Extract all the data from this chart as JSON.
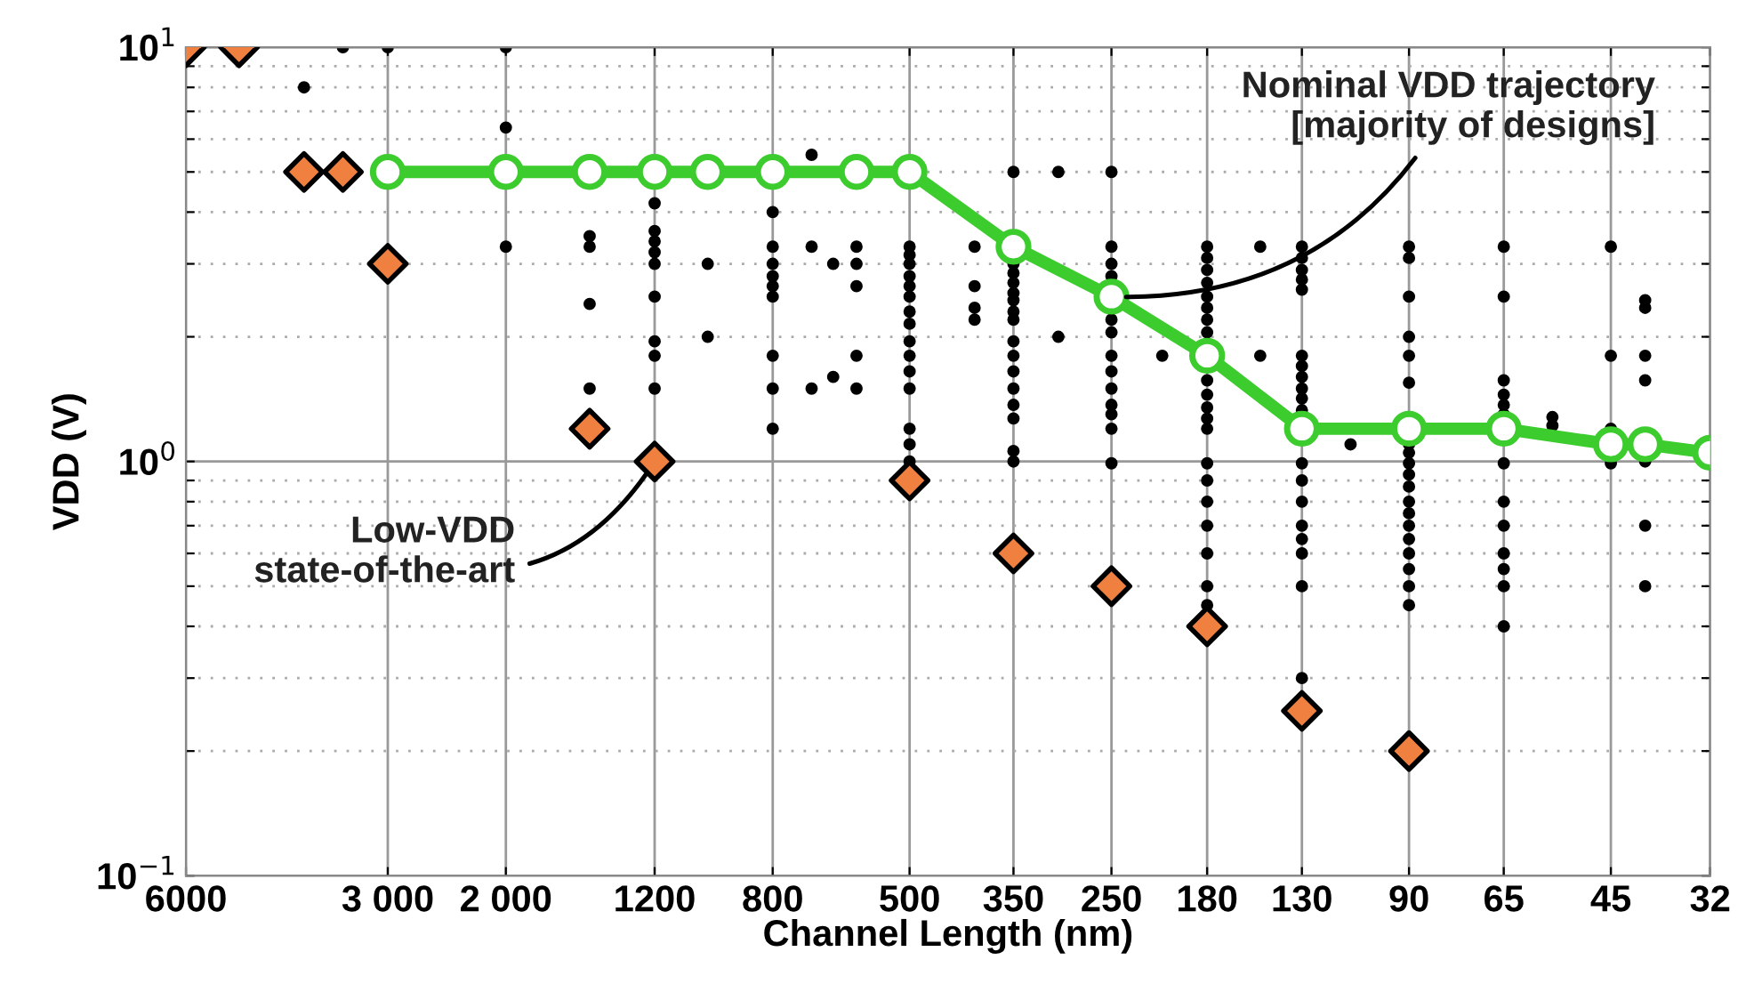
{
  "chart_data": {
    "type": "scatter",
    "xlabel": "Channel Length (nm)",
    "ylabel": "VDD (V)",
    "log": "xy",
    "grid": true,
    "legend": false,
    "xlim": [
      6000,
      32
    ],
    "ylim": [
      0.1,
      10
    ],
    "xticks": [
      6000,
      {
        "value": 3000,
        "label": "3 000"
      },
      {
        "value": 2000,
        "label": "2 000"
      },
      1200,
      800,
      500,
      350,
      250,
      180,
      130,
      90,
      65,
      45,
      32
    ],
    "yticks": [
      {
        "value": 0.1,
        "label": "10$^{−1}$"
      },
      {
        "value": 0.2,
        "label": null
      },
      {
        "value": 0.3,
        "label": null
      },
      {
        "value": 0.4,
        "label": null
      },
      {
        "value": 0.5,
        "label": null
      },
      {
        "value": 0.6,
        "label": null
      },
      {
        "value": 0.7,
        "label": null
      },
      {
        "value": 0.8,
        "label": null
      },
      {
        "value": 0.9,
        "label": null
      },
      {
        "value": 1,
        "label": "10$^{0}$"
      },
      {
        "value": 2,
        "label": null
      },
      {
        "value": 3,
        "label": null
      },
      {
        "value": 4,
        "label": null
      },
      {
        "value": 5,
        "label": null
      },
      {
        "value": 6,
        "label": null
      },
      {
        "value": 7,
        "label": null
      },
      {
        "value": 8,
        "label": null
      },
      {
        "value": 9,
        "label": null
      },
      {
        "value": 10,
        "label": "10$^{1}$"
      }
    ],
    "series": [
      {
        "type": "scatter",
        "color": "#000000",
        "marker": "circle",
        "x": [
          3500,
          3000,
          2000,
          2000,
          2000,
          4000,
          1500,
          1500,
          1500,
          1500,
          1200,
          1200,
          1200,
          1200,
          1200,
          1200,
          1200,
          1200,
          1200,
          1000,
          1000,
          800,
          800,
          800,
          800,
          800,
          800,
          800,
          800,
          800,
          700,
          700,
          700,
          650,
          650,
          600,
          600,
          600,
          600,
          600,
          500,
          500,
          500,
          500,
          500,
          500,
          500,
          500,
          500,
          500,
          500,
          500,
          500,
          500,
          500,
          400,
          400,
          400,
          400,
          350,
          350,
          350,
          350,
          350,
          350,
          350,
          350,
          350,
          350,
          350,
          350,
          350,
          350,
          350,
          350,
          300,
          300,
          250,
          250,
          250,
          250,
          250,
          250,
          250,
          250,
          250,
          250,
          250,
          250,
          250,
          210,
          180,
          180,
          180,
          180,
          180,
          180,
          180,
          180,
          180,
          180,
          180,
          180,
          180,
          180,
          180,
          180,
          180,
          180,
          180,
          180,
          150,
          150,
          130,
          130,
          130,
          130,
          130,
          130,
          130,
          130,
          130,
          130,
          130,
          130,
          130,
          130,
          130,
          130,
          130,
          130,
          130,
          110,
          90,
          90,
          90,
          90,
          90,
          90,
          90,
          90,
          90,
          90,
          90,
          90,
          90,
          90,
          90,
          90,
          90,
          90,
          90,
          65,
          65,
          65,
          65,
          65,
          65,
          65,
          65,
          65,
          65,
          65,
          65,
          65,
          55,
          55,
          45,
          45,
          45,
          45,
          40,
          40,
          40,
          40,
          40,
          40,
          40
        ],
        "values": [
          10,
          10,
          10,
          6.4,
          3.3,
          8.0,
          3.5,
          3.3,
          2.4,
          1.5,
          4.2,
          3.6,
          3.4,
          3.2,
          3.0,
          2.5,
          1.95,
          1.8,
          1.5,
          3.0,
          2.0,
          4.0,
          3.3,
          3.0,
          2.8,
          2.65,
          2.5,
          1.8,
          1.5,
          1.2,
          5.5,
          3.3,
          1.5,
          3.0,
          1.6,
          3.3,
          3.0,
          2.65,
          1.8,
          1.5,
          3.3,
          3.15,
          3.0,
          2.8,
          2.65,
          2.5,
          2.3,
          2.15,
          1.95,
          1.8,
          1.65,
          1.5,
          1.2,
          1.1,
          1.0,
          3.3,
          2.65,
          2.35,
          2.2,
          5.0,
          3.0,
          2.85,
          2.7,
          2.55,
          2.45,
          2.3,
          2.2,
          1.95,
          1.8,
          1.65,
          1.5,
          1.37,
          1.27,
          1.06,
          1.0,
          5.0,
          2.0,
          5.0,
          3.3,
          3.0,
          2.8,
          2.2,
          2.05,
          1.8,
          1.65,
          1.5,
          1.37,
          1.3,
          1.2,
          0.99,
          1.8,
          3.3,
          3.1,
          2.9,
          2.7,
          2.5,
          2.35,
          2.2,
          2.05,
          1.57,
          1.45,
          1.35,
          1.27,
          1.2,
          0.99,
          0.9,
          0.8,
          0.7,
          0.6,
          0.5,
          0.45,
          3.3,
          1.8,
          3.3,
          3.1,
          2.9,
          2.75,
          2.6,
          1.8,
          1.7,
          1.6,
          1.5,
          1.42,
          1.33,
          0.99,
          0.9,
          0.8,
          0.7,
          0.65,
          0.6,
          0.5,
          0.3,
          1.1,
          3.3,
          3.1,
          2.5,
          2.0,
          1.8,
          1.55,
          1.1,
          1.05,
          0.99,
          0.93,
          0.87,
          0.8,
          0.75,
          0.7,
          0.65,
          0.6,
          0.55,
          0.5,
          0.45,
          3.3,
          2.5,
          1.57,
          1.45,
          1.37,
          1.3,
          0.99,
          0.8,
          0.7,
          0.6,
          0.55,
          0.5,
          0.4,
          1.28,
          1.22,
          3.3,
          1.8,
          1.2,
          0.99,
          2.45,
          2.35,
          1.8,
          1.57,
          1.0,
          0.7,
          0.5
        ]
      },
      {
        "type": "line",
        "color": "#3ccc2e",
        "marker": "circle",
        "x": [
          3000,
          2000,
          1500,
          1200,
          1000,
          800,
          600,
          500,
          350,
          250,
          180,
          130,
          90,
          65,
          45,
          40,
          32
        ],
        "values": [
          5,
          5,
          5,
          5,
          5,
          5,
          5,
          5,
          3.3,
          2.5,
          1.8,
          1.2,
          1.2,
          1.2,
          1.1,
          1.1,
          1.05
        ]
      },
      {
        "type": "scatter",
        "color": "#f08040",
        "marker": "diamond",
        "x": [
          6000,
          5000,
          4000,
          3500,
          3000,
          1500,
          1200,
          500,
          350,
          250,
          180,
          130,
          90
        ],
        "values": [
          10,
          10,
          5,
          5,
          3.0,
          1.2,
          1.0,
          0.9,
          0.6,
          0.5,
          0.4,
          0.25,
          0.2
        ]
      }
    ],
    "annotations": [
      {
        "text": "Nominal VDD trajectory\n[majority of designs]",
        "x": 250,
        "y": 2.5
      },
      {
        "text": "Low-VDD\nstate-of-the-art",
        "x": 1200,
        "y": 1.0
      }
    ]
  }
}
